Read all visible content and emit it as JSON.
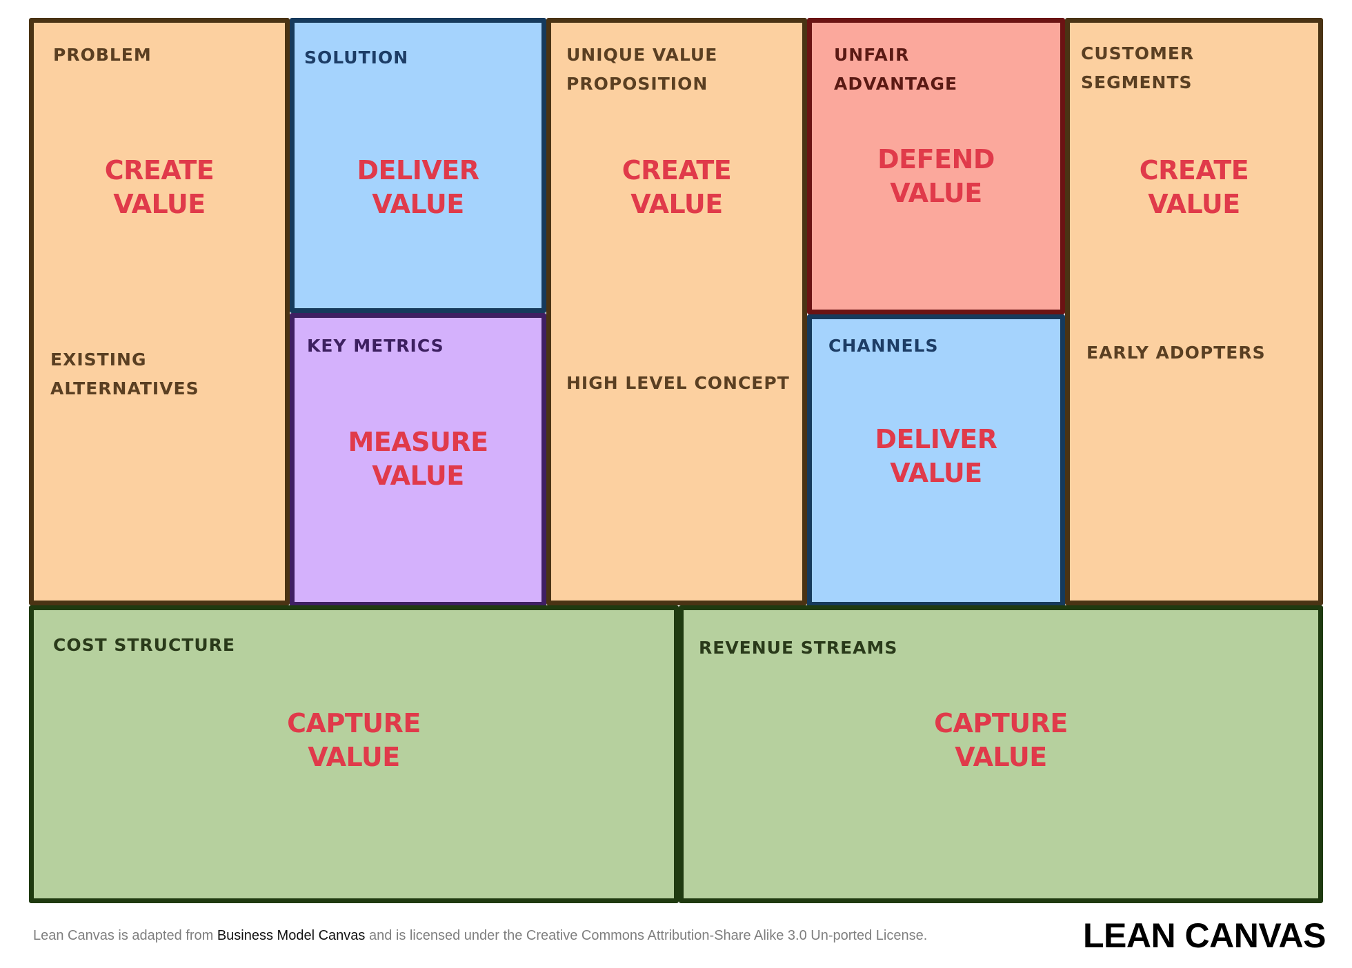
{
  "canvas": {
    "blocks": [
      {
        "id": "problem",
        "label": "PROBLEM",
        "value": "CREATE\nVALUE",
        "color": "#fcd0a0"
      },
      {
        "id": "existing-alternatives",
        "label": "EXISTING\nALTERNATIVES",
        "color": "#fcd0a0"
      },
      {
        "id": "solution",
        "label": "SOLUTION",
        "value": "DELIVER\nVALUE",
        "color": "#a5d3fd"
      },
      {
        "id": "key-metrics",
        "label": "KEY  METRICS",
        "value": "MEASURE\nVALUE",
        "color": "#d4b1fc"
      },
      {
        "id": "unique-value-proposition",
        "label": "UNIQUE VALUE\nPROPOSITION",
        "value": "CREATE\nVALUE",
        "color": "#fcd0a0"
      },
      {
        "id": "high-level-concept",
        "label": "HIGH LEVEL CONCEPT",
        "color": "#fcd0a0"
      },
      {
        "id": "unfair-advantage",
        "label": "UNFAIR\nADVANTAGE",
        "value": "DEFEND\nVALUE",
        "color": "#fba89c"
      },
      {
        "id": "channels",
        "label": "CHANNELS",
        "value": "DELIVER\nVALUE",
        "color": "#a5d3fd"
      },
      {
        "id": "customer-segments",
        "label": "CUSTOMER\nSEGMENTS",
        "value": "CREATE\nVALUE",
        "color": "#fcd0a0"
      },
      {
        "id": "early-adopters",
        "label": "EARLY ADOPTERS",
        "color": "#fcd0a0"
      },
      {
        "id": "cost-structure",
        "label": "COST STRUCTURE",
        "value": "CAPTURE\nVALUE",
        "color": "#b6d09e"
      },
      {
        "id": "revenue-streams",
        "label": "REVENUE STREAMS",
        "value": "CAPTURE\nVALUE",
        "color": "#b6d09e"
      }
    ],
    "value_text_color": "#e03a4a"
  },
  "footer": {
    "note_prefix": "Lean Canvas is adapted from ",
    "note_link": "Business Model Canvas",
    "note_suffix": " and is licensed under the Creative Commons Attribution-Share Alike 3.0 Un-ported License.",
    "brand": "LEAN CANVAS"
  }
}
